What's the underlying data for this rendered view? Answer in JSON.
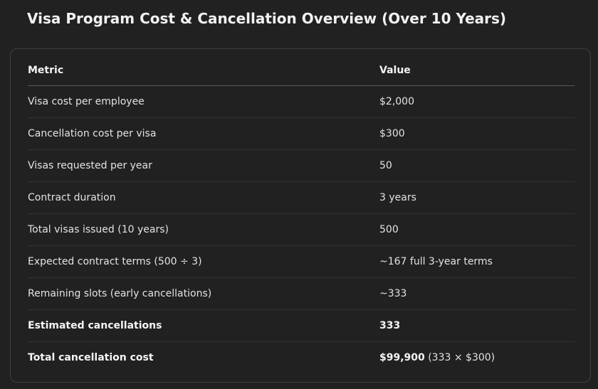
{
  "title": "Visa Program Cost & Cancellation Overview (Over 10 Years)",
  "table": {
    "headers": [
      "Metric",
      "Value"
    ],
    "rows": [
      {
        "metric": "Visa cost per employee",
        "value": "$2,000"
      },
      {
        "metric": "Cancellation cost per visa",
        "value": "$300"
      },
      {
        "metric": "Visas requested per year",
        "value": "50"
      },
      {
        "metric": "Contract duration",
        "value": "3 years"
      },
      {
        "metric": "Total visas issued (10 years)",
        "value": "500"
      },
      {
        "metric": "Expected contract terms (500 ÷ 3)",
        "value": "~167 full 3-year terms"
      },
      {
        "metric": "Remaining slots (early cancellations)",
        "value": "~333"
      },
      {
        "metric": "Estimated cancellations",
        "value": "333"
      },
      {
        "metric": "Total cancellation cost",
        "value": "$99,900",
        "note": " (333 × $300)"
      }
    ]
  }
}
